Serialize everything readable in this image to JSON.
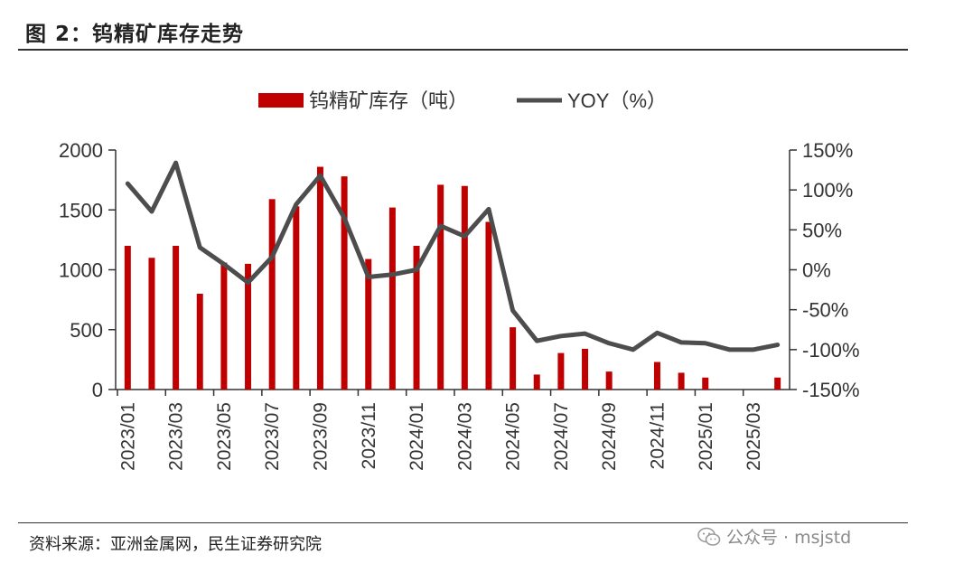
{
  "figure": {
    "title": "图 2：钨精矿库存走势",
    "source": "资料来源：亚洲金属网，民生证券研究院",
    "watermark": "公众号 · msjstd",
    "watermark_icon": "wechat-icon"
  },
  "colors": {
    "bar": "#C00000",
    "line": "#4D4D4D",
    "axis": "#333333"
  },
  "chart_data": {
    "type": "bar+line",
    "title": "",
    "legend_position": "top-center",
    "grid": false,
    "x_tick_labels": [
      "2023/01",
      "2023/03",
      "2023/05",
      "2023/07",
      "2023/09",
      "2023/11",
      "2024/01",
      "2024/03",
      "2024/05",
      "2024/07",
      "2024/09",
      "2024/11",
      "2025/01",
      "2025/03"
    ],
    "categories": [
      "2023/01",
      "2023/02",
      "2023/03",
      "2023/04",
      "2023/05",
      "2023/06",
      "2023/07",
      "2023/08",
      "2023/09",
      "2023/10",
      "2023/11",
      "2023/12",
      "2024/01",
      "2024/02",
      "2024/03",
      "2024/04",
      "2024/05",
      "2024/06",
      "2024/07",
      "2024/08",
      "2024/09",
      "2024/10",
      "2024/11",
      "2024/12",
      "2025/01",
      "2025/02",
      "2025/03",
      "2025/04"
    ],
    "left_axis": {
      "ylim": [
        0,
        2000
      ],
      "ticks": [
        "0",
        "500",
        "1000",
        "1500",
        "2000"
      ]
    },
    "right_axis": {
      "ylim": [
        -150,
        150
      ],
      "ticks": [
        "-150%",
        "-100%",
        "-50%",
        "0%",
        "50%",
        "100%",
        "150%"
      ]
    },
    "series": [
      {
        "name": "钨精矿库存（吨）",
        "type": "bar",
        "axis": "left",
        "values": [
          1200,
          1100,
          1200,
          800,
          1060,
          1050,
          1590,
          1530,
          1860,
          1780,
          1090,
          1520,
          1200,
          1710,
          1700,
          1400,
          520,
          125,
          305,
          340,
          150,
          null,
          230,
          140,
          100,
          null,
          null,
          100
        ]
      },
      {
        "name": "YOY（%）",
        "type": "line",
        "axis": "right",
        "values": [
          108,
          73,
          134,
          28,
          7,
          -16,
          16,
          82,
          118,
          65,
          -9,
          -6,
          0,
          55,
          42,
          76,
          -51,
          -89,
          -83,
          -80,
          -92,
          -100,
          -79,
          -91,
          -92,
          -100,
          -100,
          -94
        ]
      }
    ]
  }
}
